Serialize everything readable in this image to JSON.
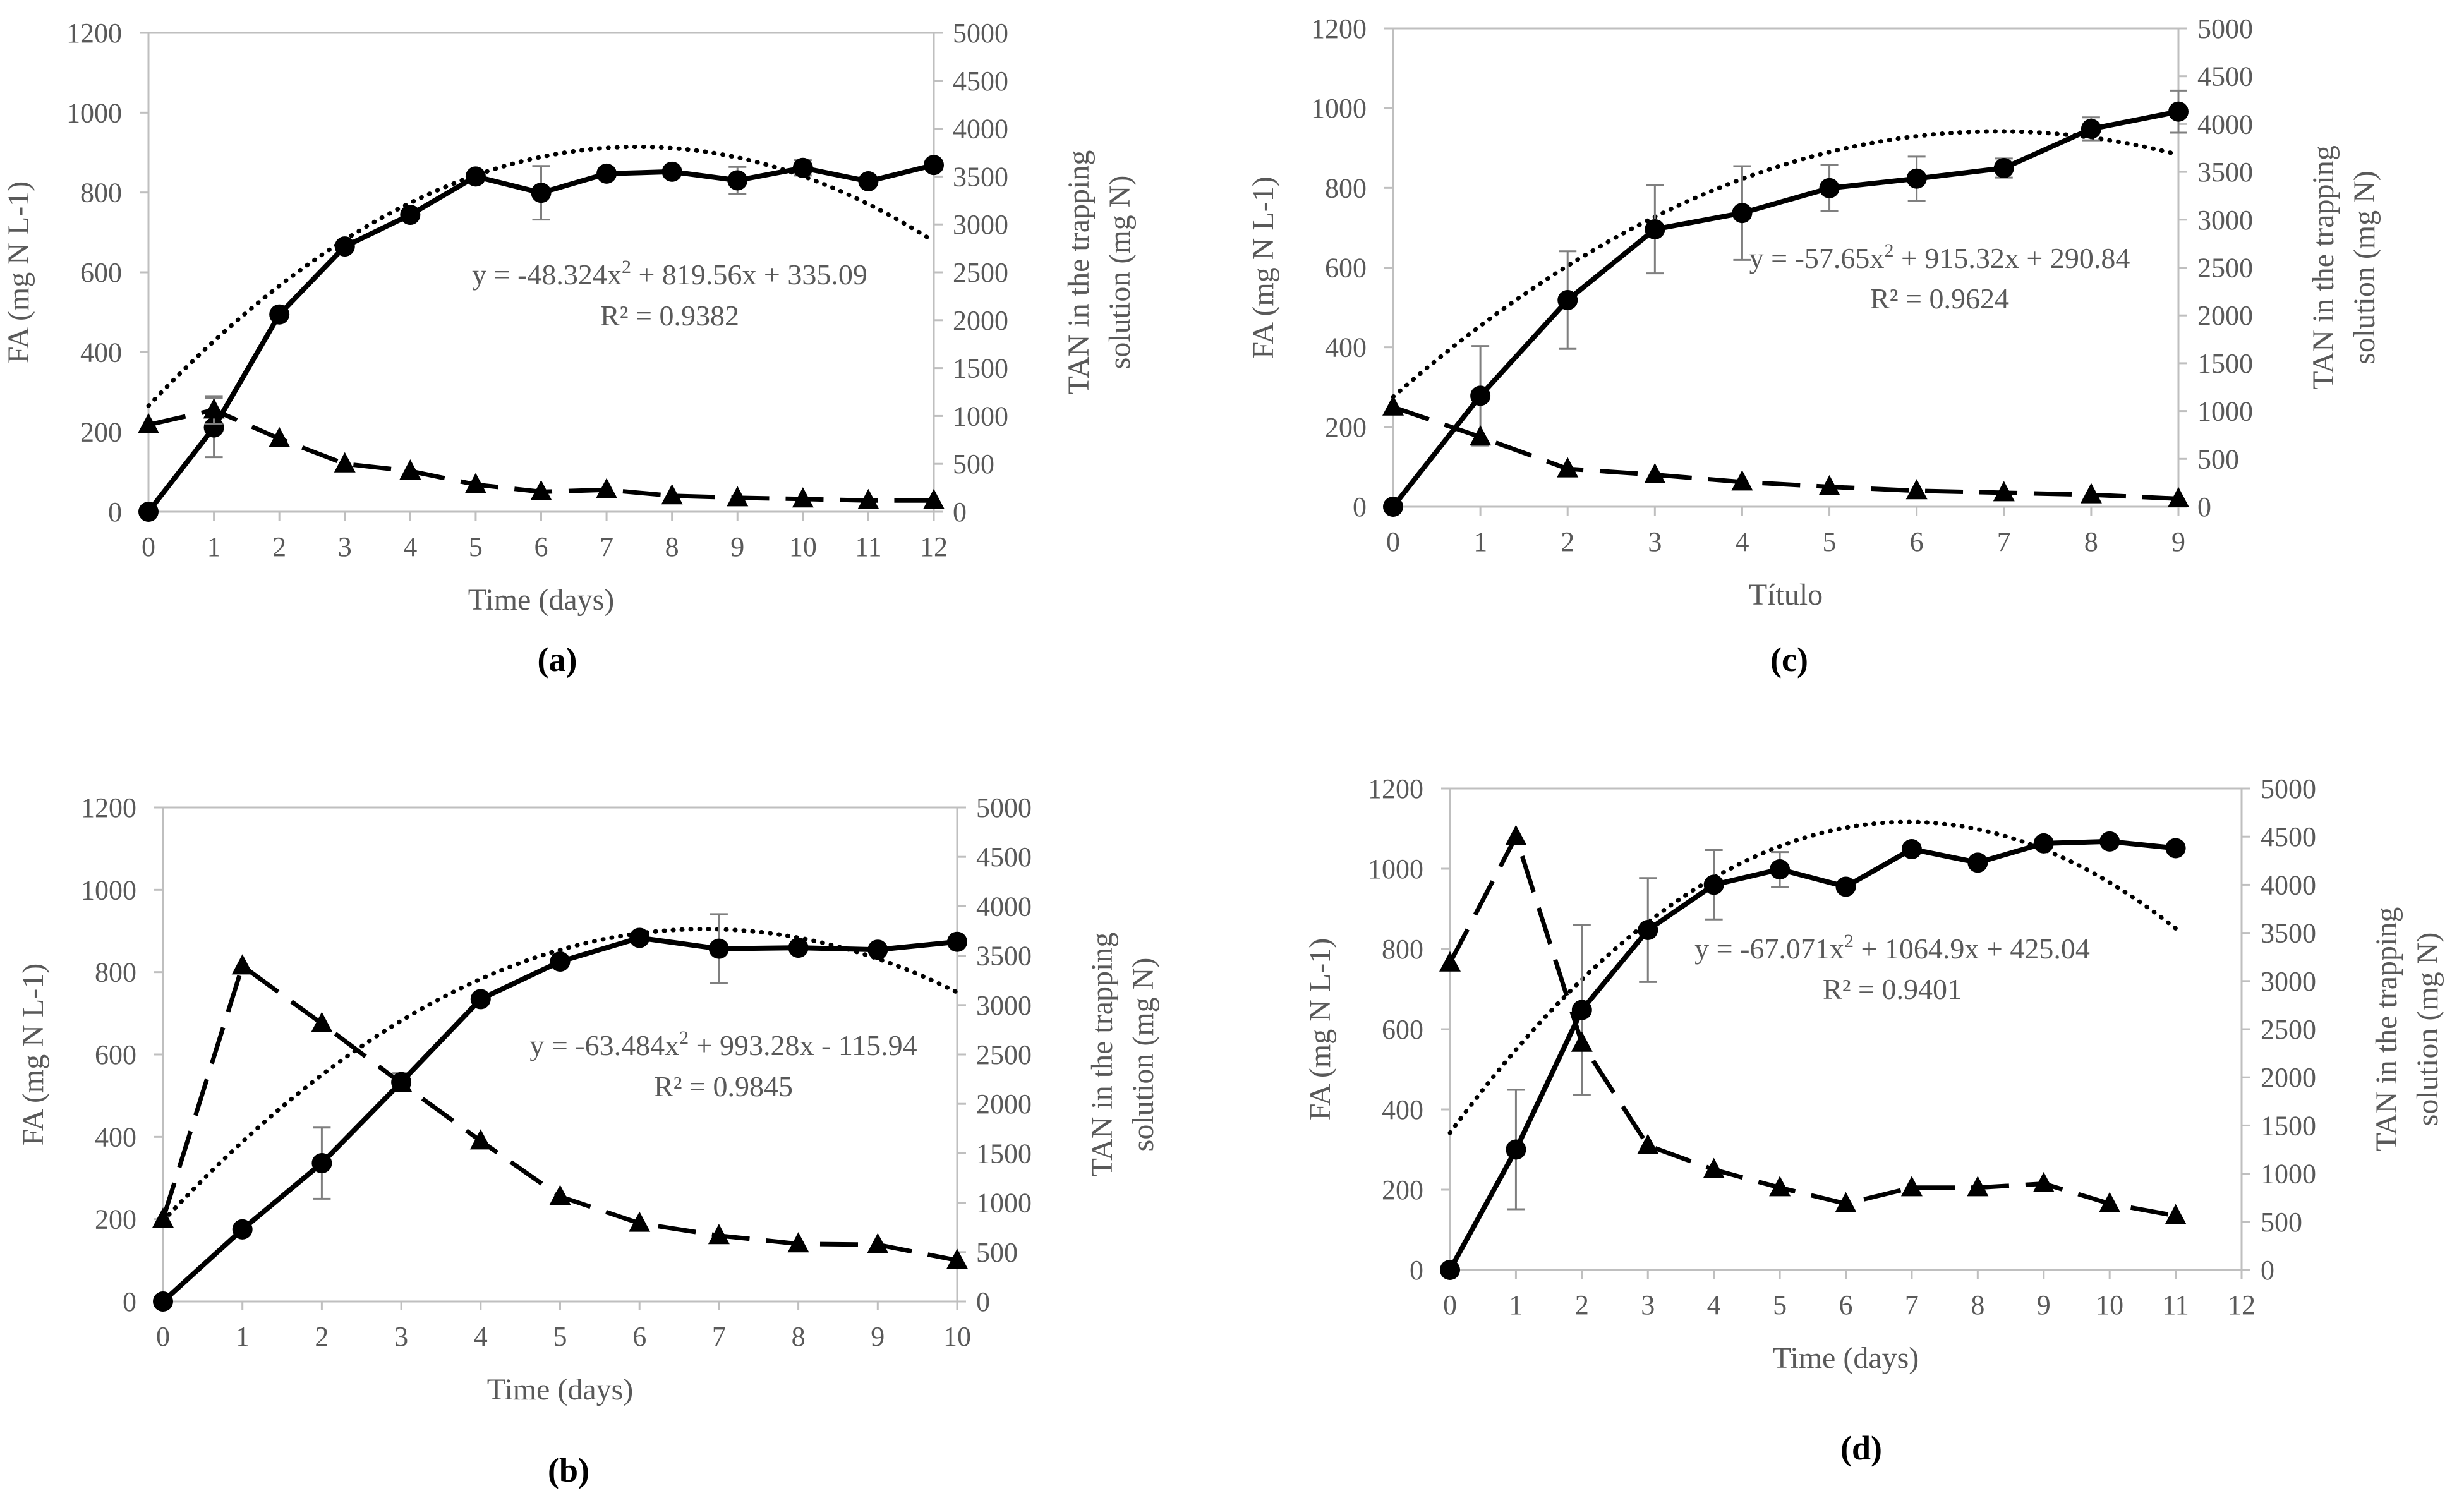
{
  "figure": {
    "colors": {
      "axis": "#bfbfbf",
      "text": "#595959",
      "series": "#000000",
      "grid": "#bfbfbf"
    }
  },
  "chart_data": [
    {
      "id": "a",
      "type": "line",
      "panel_label": "(a)",
      "xlabel": "Time (days)",
      "ylabel_left": "FA (mg N L-1)",
      "ylabel_right": [
        "TAN in the trapping",
        "solution (mg N)"
      ],
      "xlim": [
        0,
        12
      ],
      "xticks": [
        0,
        1,
        2,
        3,
        4,
        5,
        6,
        7,
        8,
        9,
        10,
        11,
        12
      ],
      "ylim_left": [
        0,
        1200
      ],
      "yticks_left": [
        0,
        200,
        400,
        600,
        800,
        1000,
        1200
      ],
      "ylim_right": [
        0,
        5000
      ],
      "yticks_right": [
        0,
        500,
        1000,
        1500,
        2000,
        2500,
        3000,
        3500,
        4000,
        4500,
        5000
      ],
      "series": [
        {
          "name": "TAN in the trapping solution",
          "axis": "right",
          "style": "solid",
          "marker": "circle",
          "x": [
            0,
            1,
            2,
            3,
            4,
            5,
            6,
            7,
            8,
            9,
            10,
            11,
            12
          ],
          "values": [
            0,
            880,
            2060,
            2770,
            3100,
            3500,
            3330,
            3530,
            3550,
            3460,
            3590,
            3450,
            3620
          ],
          "err": [
            0,
            310,
            0,
            0,
            0,
            0,
            280,
            0,
            0,
            140,
            80,
            0,
            0
          ]
        },
        {
          "name": "FA",
          "axis": "left",
          "style": "dashed",
          "marker": "triangle",
          "x": [
            0,
            1,
            2,
            3,
            4,
            5,
            6,
            7,
            8,
            9,
            10,
            11,
            12
          ],
          "values": [
            218,
            255,
            183,
            120,
            102,
            68,
            50,
            55,
            40,
            35,
            32,
            28,
            28
          ],
          "err": [
            0,
            35,
            0,
            0,
            0,
            0,
            0,
            0,
            0,
            0,
            0,
            0,
            0
          ]
        },
        {
          "name": "Polynomial trend",
          "axis": "right",
          "style": "dotted",
          "marker": "none",
          "coeffs": [
            -48.324,
            819.56,
            335.09
          ],
          "x_start": 0,
          "x_end": 12
        }
      ],
      "equation": {
        "prefix": "y = -48.324x",
        "sup": "2",
        "suffix": " + 819.56x + 335.09",
        "r2": "R² = 0.9382"
      }
    },
    {
      "id": "b",
      "type": "line",
      "panel_label": "(b)",
      "xlabel": "Time (days)",
      "ylabel_left": "FA (mg N L-1)",
      "ylabel_right": [
        "TAN in the trapping",
        "solution (mg N)"
      ],
      "xlim": [
        0,
        10
      ],
      "xticks": [
        0,
        1,
        2,
        3,
        4,
        5,
        6,
        7,
        8,
        9,
        10
      ],
      "ylim_left": [
        0,
        1200
      ],
      "yticks_left": [
        0,
        200,
        400,
        600,
        800,
        1000,
        1200
      ],
      "ylim_right": [
        0,
        5000
      ],
      "yticks_right": [
        0,
        500,
        1000,
        1500,
        2000,
        2500,
        3000,
        3500,
        4000,
        4500,
        5000
      ],
      "series": [
        {
          "name": "TAN in the trapping solution",
          "axis": "right",
          "style": "solid",
          "marker": "circle",
          "x": [
            0,
            1,
            2,
            3,
            4,
            5,
            6,
            7,
            8,
            9,
            10
          ],
          "values": [
            0,
            730,
            1400,
            2220,
            3060,
            3440,
            3680,
            3570,
            3580,
            3560,
            3640
          ],
          "err": [
            0,
            0,
            360,
            90,
            0,
            0,
            0,
            350,
            0,
            0,
            0
          ]
        },
        {
          "name": "FA",
          "axis": "left",
          "style": "dashed",
          "marker": "triangle",
          "x": [
            0,
            1,
            2,
            3,
            4,
            5,
            6,
            7,
            8,
            9,
            10
          ],
          "values": [
            200,
            815,
            675,
            530,
            390,
            255,
            190,
            160,
            140,
            138,
            100
          ],
          "err": [
            0,
            0,
            0,
            0,
            0,
            0,
            0,
            0,
            0,
            0,
            0
          ]
        },
        {
          "name": "Polynomial trend",
          "axis": "right",
          "style": "dotted",
          "marker": "none",
          "coeffs": [
            -63.484,
            993.28,
            -115.94
          ],
          "x_start": 0,
          "x_end": 10
        }
      ],
      "equation": {
        "prefix": "y = -63.484x",
        "sup": "2",
        "suffix": " + 993.28x - 115.94",
        "r2": "R² = 0.9845"
      }
    },
    {
      "id": "c",
      "type": "line",
      "panel_label": "(c)",
      "xlabel": "Título",
      "ylabel_left": "FA (mg N L-1)",
      "ylabel_right": [
        "TAN in the trapping",
        "solution (mg N)"
      ],
      "xlim": [
        0,
        9
      ],
      "xticks": [
        0,
        1,
        2,
        3,
        4,
        5,
        6,
        7,
        8,
        9
      ],
      "ylim_left": [
        0,
        1200
      ],
      "yticks_left": [
        0,
        200,
        400,
        600,
        800,
        1000,
        1200
      ],
      "ylim_right": [
        0,
        5000
      ],
      "yticks_right": [
        0,
        500,
        1000,
        1500,
        2000,
        2500,
        3000,
        3500,
        4000,
        4500,
        5000
      ],
      "series": [
        {
          "name": "TAN in the trapping solution",
          "axis": "right",
          "style": "solid",
          "marker": "circle",
          "x": [
            0,
            1,
            2,
            3,
            4,
            5,
            6,
            7,
            8,
            9
          ],
          "values": [
            0,
            1160,
            2160,
            2900,
            3070,
            3330,
            3430,
            3540,
            3950,
            4130
          ],
          "err": [
            0,
            520,
            510,
            460,
            490,
            240,
            230,
            100,
            120,
            220
          ]
        },
        {
          "name": "FA",
          "axis": "left",
          "style": "dashed",
          "marker": "triangle",
          "x": [
            0,
            1,
            2,
            3,
            4,
            5,
            6,
            7,
            8,
            9
          ],
          "values": [
            250,
            175,
            95,
            80,
            62,
            50,
            40,
            35,
            30,
            20
          ],
          "err": [
            0,
            0,
            0,
            0,
            0,
            0,
            0,
            0,
            0,
            0
          ]
        },
        {
          "name": "Polynomial trend",
          "axis": "right",
          "style": "dotted",
          "marker": "none",
          "coeffs": [
            -57.65,
            915.32,
            290.84
          ],
          "x_start": 0,
          "x_end": 9
        }
      ],
      "equation": {
        "prefix": "y = -57.65x",
        "sup": "2",
        "suffix": " + 915.32x + 290.84",
        "r2": "R² = 0.9624"
      }
    },
    {
      "id": "d",
      "type": "line",
      "panel_label": "(d)",
      "xlabel": "Time (days)",
      "ylabel_left": "FA (mg N L-1)",
      "ylabel_right": [
        "TAN in the trapping",
        "solution (mg N)"
      ],
      "xlim": [
        0,
        12
      ],
      "xticks": [
        0,
        1,
        2,
        3,
        4,
        5,
        6,
        7,
        8,
        9,
        10,
        11,
        12
      ],
      "ylim_left": [
        0,
        1200
      ],
      "yticks_left": [
        0,
        200,
        400,
        600,
        800,
        1000,
        1200
      ],
      "ylim_right": [
        0,
        5000
      ],
      "yticks_right": [
        0,
        500,
        1000,
        1500,
        2000,
        2500,
        3000,
        3500,
        4000,
        4500,
        5000
      ],
      "series": [
        {
          "name": "TAN in the trapping solution",
          "axis": "right",
          "style": "solid",
          "marker": "circle",
          "x": [
            0,
            1,
            2,
            3,
            4,
            5,
            6,
            7,
            8,
            9,
            10,
            11
          ],
          "values": [
            0,
            1250,
            2700,
            3530,
            4000,
            4160,
            3980,
            4370,
            4230,
            4430,
            4450,
            4380
          ],
          "err": [
            0,
            620,
            880,
            540,
            360,
            180,
            0,
            0,
            0,
            0,
            0,
            0
          ]
        },
        {
          "name": "FA",
          "axis": "left",
          "style": "dashed",
          "marker": "triangle",
          "x": [
            0,
            1,
            2,
            3,
            4,
            5,
            6,
            7,
            8,
            9,
            10,
            11
          ],
          "values": [
            765,
            1080,
            565,
            310,
            250,
            205,
            165,
            205,
            205,
            215,
            165,
            135
          ],
          "err": [
            0,
            0,
            0,
            0,
            0,
            0,
            0,
            0,
            0,
            0,
            0,
            0
          ]
        },
        {
          "name": "Polynomial trend",
          "axis": "right",
          "style": "dotted",
          "marker": "none",
          "coeffs": [
            -67.071,
            1064.9,
            425.04
          ],
          "x_start": 0,
          "x_end": 11
        }
      ],
      "equation": {
        "prefix": "y = -67.071x",
        "sup": "2",
        "suffix": " + 1064.9x + 425.04",
        "r2": "R² = 0.9401"
      }
    }
  ]
}
